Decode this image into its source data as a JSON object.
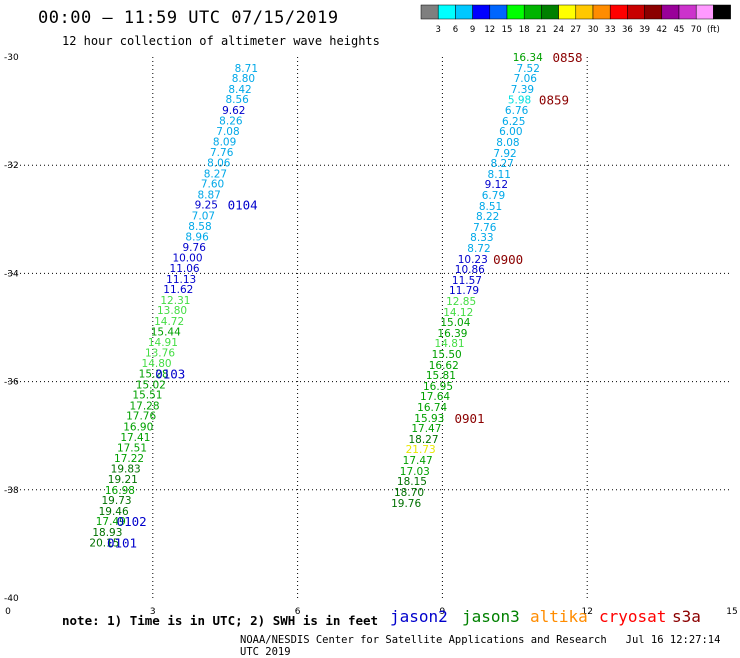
{
  "header": {
    "title": "00:00 – 11:59 UTC 07/15/2019",
    "subtitle": "12 hour collection of altimeter wave heights"
  },
  "color_scale": {
    "colors": [
      "#7f7f7f",
      "#00ffff",
      "#00c8ff",
      "#0000ff",
      "#0066ff",
      "#00ff00",
      "#00b400",
      "#008000",
      "#ffff00",
      "#ffc800",
      "#ff8c00",
      "#ff0000",
      "#c80000",
      "#8b0000",
      "#990099",
      "#cc33cc",
      "#ff99ff",
      "#000000"
    ],
    "labels": [
      "3",
      "6",
      "9",
      "12",
      "15",
      "18",
      "21",
      "24",
      "27",
      "30",
      "33",
      "36",
      "39",
      "42",
      "45",
      "70",
      "(ft)"
    ]
  },
  "footer": {
    "note": "note: 1) Time is in UTC; 2) SWH is in feet",
    "credit": "NOAA/NESDIS Center for Satellite Applications and Research",
    "timestamp": "Jul 16 12:27:14 UTC 2019"
  },
  "satellites": [
    {
      "name": "jason2",
      "color": "#0000cc"
    },
    {
      "name": "jason3",
      "color": "#008000"
    },
    {
      "name": "altika",
      "color": "#ff8c00"
    },
    {
      "name": "cryosat",
      "color": "#ff0000"
    },
    {
      "name": "s3a",
      "color": "#8b0000"
    }
  ],
  "chart_data": {
    "type": "scatter",
    "xlim": [
      0,
      15
    ],
    "ylim": [
      -40,
      -30
    ],
    "x_ticks": [
      0,
      3,
      6,
      9,
      12,
      15
    ],
    "y_ticks": [
      -30,
      -32,
      -34,
      -36,
      -38,
      -40
    ],
    "x_tick_labels": [
      "0",
      "3",
      "6",
      "9",
      "12",
      "15"
    ],
    "y_tick_labels": [
      "-30",
      "-32",
      "-34",
      "-36",
      "-38",
      "-40"
    ],
    "grid": true,
    "tracks": [
      {
        "points": [
          [
            5.18,
            -30.2,
            "8.71"
          ],
          [
            5.12,
            -30.39,
            "8.80"
          ],
          [
            5.05,
            -30.59,
            "8.42"
          ],
          [
            4.99,
            -30.78,
            "8.56"
          ],
          [
            4.92,
            -30.98,
            "9.62"
          ],
          [
            4.86,
            -31.17,
            "8.26"
          ],
          [
            4.8,
            -31.37,
            "7.08"
          ],
          [
            4.73,
            -31.56,
            "8.09"
          ],
          [
            4.67,
            -31.76,
            "7.76"
          ],
          [
            4.61,
            -31.95,
            "8.06"
          ],
          [
            4.54,
            -32.15,
            "8.27"
          ],
          [
            4.48,
            -32.34,
            "7.60"
          ],
          [
            4.41,
            -32.54,
            "8.87"
          ],
          [
            4.35,
            -32.73,
            "9.25"
          ],
          [
            4.29,
            -32.93,
            "7.07"
          ],
          [
            4.22,
            -33.12,
            "8.58"
          ],
          [
            4.16,
            -33.32,
            "8.96"
          ],
          [
            4.1,
            -33.51,
            "9.76"
          ],
          [
            4.03,
            -33.71,
            "10.00"
          ],
          [
            3.97,
            -33.9,
            "11.06"
          ],
          [
            3.9,
            -34.1,
            "11.13"
          ],
          [
            3.84,
            -34.29,
            "11.62"
          ],
          [
            3.78,
            -34.49,
            "12.31"
          ],
          [
            3.71,
            -34.68,
            "13.80"
          ],
          [
            3.65,
            -34.88,
            "14.72"
          ],
          [
            3.58,
            -35.07,
            "15.44"
          ],
          [
            3.52,
            -35.27,
            "14.91"
          ],
          [
            3.46,
            -35.46,
            "13.76"
          ],
          [
            3.39,
            -35.66,
            "14.80"
          ],
          [
            3.33,
            -35.85,
            "15.28"
          ],
          [
            3.27,
            -36.05,
            "15.02"
          ],
          [
            3.2,
            -36.24,
            "15.51"
          ],
          [
            3.14,
            -36.44,
            "17.28"
          ],
          [
            3.07,
            -36.63,
            "17.76"
          ],
          [
            3.01,
            -36.83,
            "16.90"
          ],
          [
            2.95,
            -37.02,
            "17.41"
          ],
          [
            2.88,
            -37.22,
            "17.51"
          ],
          [
            2.82,
            -37.41,
            "17.22"
          ],
          [
            2.75,
            -37.61,
            "19.83"
          ],
          [
            2.69,
            -37.8,
            "19.21"
          ],
          [
            2.63,
            -38.0,
            "16.98"
          ],
          [
            2.56,
            -38.19,
            "19.73"
          ],
          [
            2.5,
            -38.39,
            "19.46"
          ],
          [
            2.44,
            -38.58,
            "17.49"
          ],
          [
            2.37,
            -38.78,
            "18.93"
          ],
          [
            2.31,
            -38.97,
            "20.15"
          ]
        ],
        "time_labels": [
          {
            "text": "0104",
            "at": [
              4.55,
              -32.73
            ]
          },
          {
            "text": "0103",
            "at": [
              3.05,
              -35.85
            ]
          },
          {
            "text": "0102",
            "at": [
              2.25,
              -38.58
            ]
          },
          {
            "text": "0101",
            "at": [
              2.05,
              -38.97
            ]
          }
        ],
        "time_label_color": "#0000cc"
      },
      {
        "points": [
          [
            11.08,
            -30.0,
            "16.34"
          ],
          [
            11.02,
            -30.2,
            "7.52"
          ],
          [
            10.96,
            -30.39,
            "7.06"
          ],
          [
            10.9,
            -30.59,
            "7.39"
          ],
          [
            10.84,
            -30.79,
            "5.98"
          ],
          [
            10.78,
            -30.98,
            "6.76"
          ],
          [
            10.72,
            -31.18,
            "6.25"
          ],
          [
            10.66,
            -31.37,
            "6.00"
          ],
          [
            10.6,
            -31.57,
            "8.08"
          ],
          [
            10.54,
            -31.77,
            "7.92"
          ],
          [
            10.48,
            -31.96,
            "8.27"
          ],
          [
            10.42,
            -32.16,
            "8.11"
          ],
          [
            10.36,
            -32.35,
            "9.12"
          ],
          [
            10.3,
            -32.55,
            "6.79"
          ],
          [
            10.24,
            -32.75,
            "8.51"
          ],
          [
            10.18,
            -32.94,
            "8.22"
          ],
          [
            10.12,
            -33.14,
            "7.76"
          ],
          [
            10.06,
            -33.33,
            "8.33"
          ],
          [
            10.0,
            -33.53,
            "8.72"
          ],
          [
            9.94,
            -33.73,
            "10.23"
          ],
          [
            9.88,
            -33.92,
            "10.86"
          ],
          [
            9.82,
            -34.12,
            "11.57"
          ],
          [
            9.76,
            -34.31,
            "11.79"
          ],
          [
            9.7,
            -34.51,
            "12.85"
          ],
          [
            9.64,
            -34.71,
            "14.12"
          ],
          [
            9.58,
            -34.9,
            "15.04"
          ],
          [
            9.52,
            -35.1,
            "16.39"
          ],
          [
            9.46,
            -35.29,
            "14.81"
          ],
          [
            9.4,
            -35.49,
            "15.50"
          ],
          [
            9.34,
            -35.69,
            "16.62"
          ],
          [
            9.28,
            -35.88,
            "15.81"
          ],
          [
            9.22,
            -36.08,
            "16.95"
          ],
          [
            9.16,
            -36.27,
            "17.64"
          ],
          [
            9.1,
            -36.47,
            "16.74"
          ],
          [
            9.04,
            -36.67,
            "15.93"
          ],
          [
            8.98,
            -36.86,
            "17.47"
          ],
          [
            8.92,
            -37.06,
            "18.27"
          ],
          [
            8.86,
            -37.25,
            "21.73"
          ],
          [
            8.8,
            -37.45,
            "17.47"
          ],
          [
            8.74,
            -37.65,
            "17.03"
          ],
          [
            8.68,
            -37.84,
            "18.15"
          ],
          [
            8.62,
            -38.04,
            "18.70"
          ],
          [
            8.56,
            -38.24,
            "19.76"
          ]
        ],
        "time_labels": [
          {
            "text": "0858",
            "at": [
              11.28,
              -30.0
            ]
          },
          {
            "text": "0859",
            "at": [
              11.0,
              -30.79
            ]
          },
          {
            "text": "0900",
            "at": [
              10.05,
              -33.73
            ]
          },
          {
            "text": "0901",
            "at": [
              9.25,
              -36.67
            ]
          }
        ],
        "time_label_color": "#8b0000"
      }
    ]
  }
}
